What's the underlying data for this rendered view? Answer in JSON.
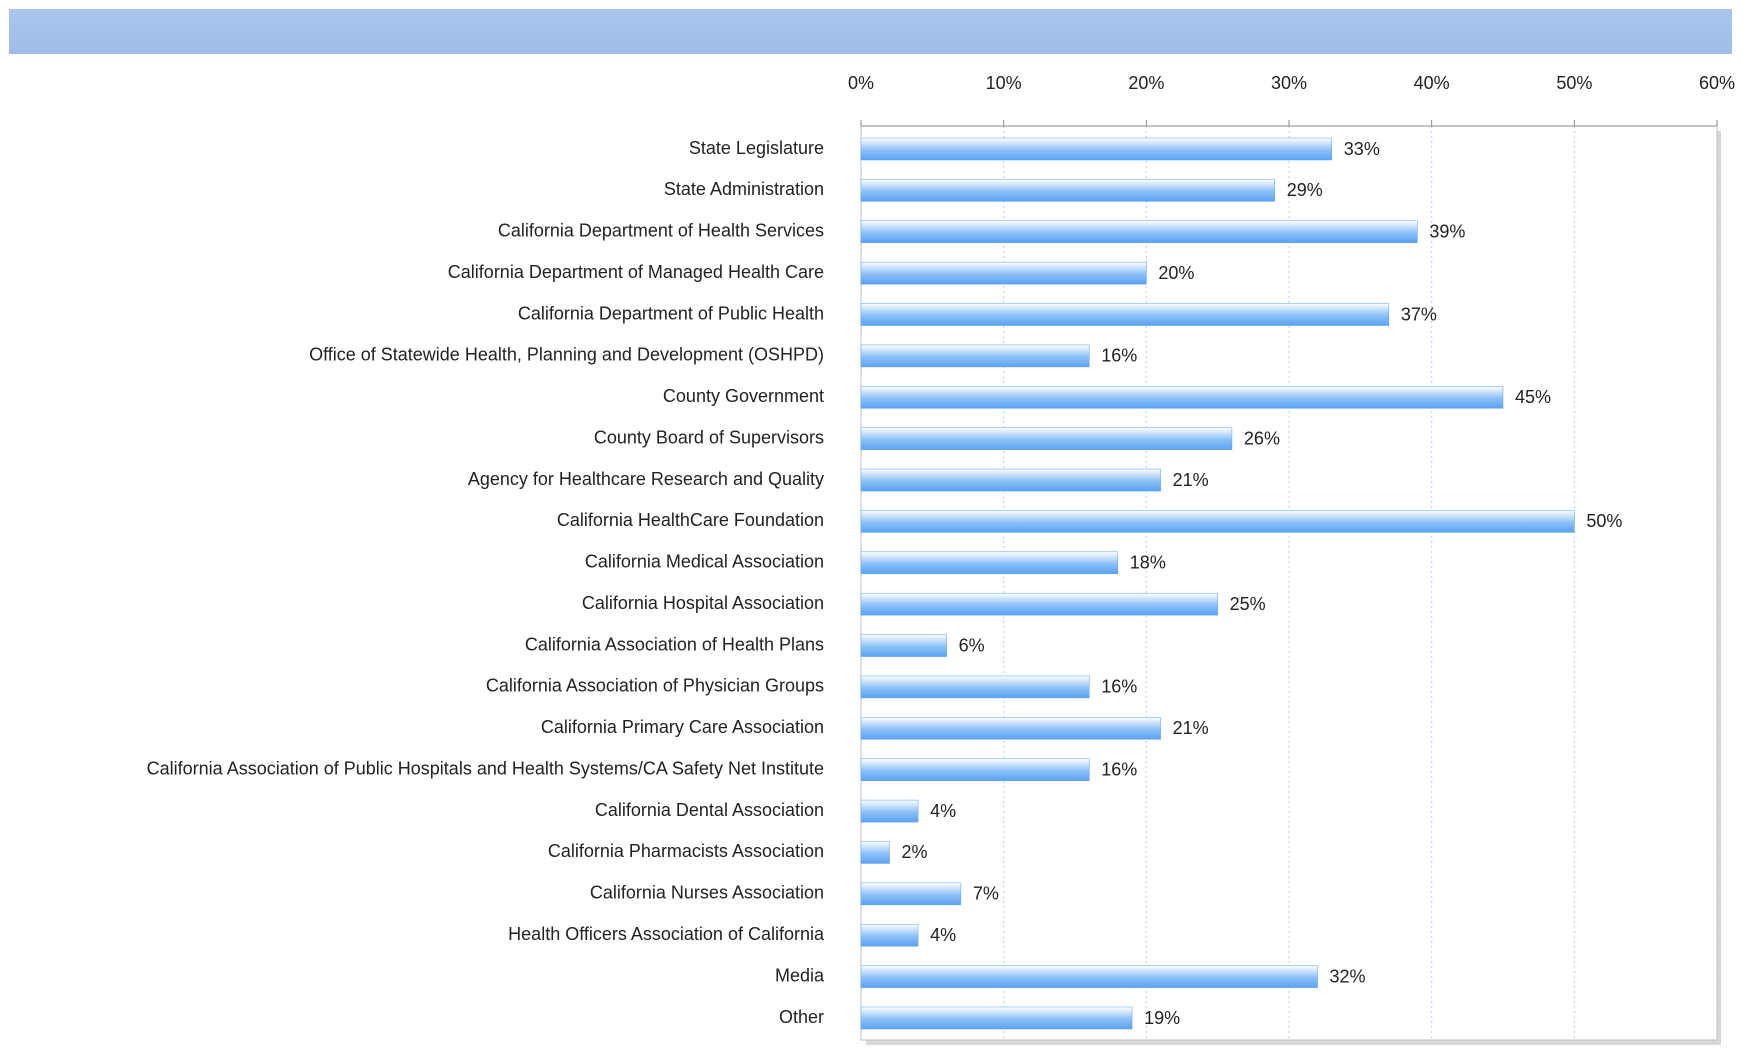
{
  "chart_data": {
    "type": "hbar",
    "categories": [
      "State Legislature",
      "State Administration",
      "California Department of Health Services",
      "California Department of Managed Health Care",
      "California Department of Public Health",
      "Office of Statewide  Health, Planning and Development (OSHPD)",
      "County Government",
      "County Board of Supervisors",
      "Agency for Healthcare Research and Quality",
      "California HealthCare Foundation",
      "California Medical Association",
      "California Hospital Association",
      "California Association of Health Plans",
      "California Association of Physician Groups",
      "California Primary Care Association",
      "California Association of Public Hospitals and Health Systems/CA Safety Net Institute",
      "California Dental Association",
      "California Pharmacists Association",
      "California Nurses Association",
      "Health Officers Association of California",
      "Media",
      "Other"
    ],
    "values": [
      33,
      29,
      39,
      20,
      37,
      16,
      45,
      26,
      21,
      50,
      18,
      25,
      6,
      16,
      21,
      16,
      4,
      2,
      7,
      4,
      32,
      19
    ],
    "value_labels": [
      "33%",
      "29%",
      "39%",
      "20%",
      "37%",
      "16%",
      "45%",
      "26%",
      "21%",
      "50%",
      "18%",
      "25%",
      "6%",
      "16%",
      "21%",
      "16%",
      "4%",
      "2%",
      "7%",
      "4%",
      "32%",
      "19%"
    ],
    "color": "#5aa2f2",
    "xlim": [
      0,
      60
    ],
    "xticks": [
      {
        "value": 0,
        "label": "0%"
      },
      {
        "value": 10,
        "label": "10%"
      },
      {
        "value": 20,
        "label": "20%"
      },
      {
        "value": 30,
        "label": "30%"
      },
      {
        "value": 40,
        "label": "40%"
      },
      {
        "value": 50,
        "label": "50%"
      },
      {
        "value": 60,
        "label": "60%"
      }
    ],
    "grid": true
  }
}
